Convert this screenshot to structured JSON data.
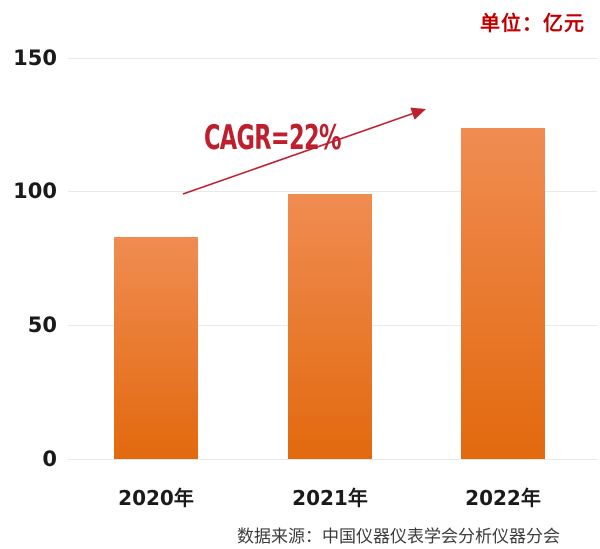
{
  "chart_data": {
    "type": "bar",
    "unit_label": "单位：亿元",
    "categories": [
      "2020年",
      "2021年",
      "2022年"
    ],
    "values": [
      83,
      99,
      124
    ],
    "yticks": [
      0,
      50,
      100,
      150
    ],
    "ylim": [
      0,
      150
    ],
    "grid": true,
    "legend": null,
    "annotation": "CAGR=22%",
    "source": "数据来源：中国仪器仪表学会分析仪器分会",
    "colors": {
      "bar_top": "#F08C52",
      "bar_bottom": "#E2690E",
      "accent_red": "#BE1E2D",
      "unit_red": "#C00000",
      "grid": "#E9E9E9",
      "axis_text": "#1A1A1A",
      "source_text": "#3D3D3D"
    }
  }
}
